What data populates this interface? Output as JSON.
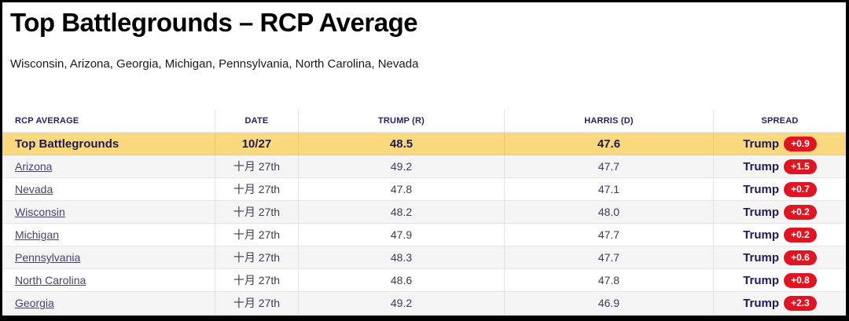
{
  "page": {
    "title": "Top Battlegrounds – RCP Average",
    "subtitle": "Wisconsin, Arizona, Georgia, Michigan, Pennsylvania, North Carolina, Nevada"
  },
  "table": {
    "columns": [
      "RCP AVERAGE",
      "DATE",
      "TRUMP (R)",
      "HARRIS (D)",
      "SPREAD"
    ],
    "summary_row": {
      "label": "Top Battlegrounds",
      "date": "10/27",
      "trump": "48.5",
      "harris": "47.6",
      "spread_winner": "Trump",
      "spread_margin": "+0.9"
    },
    "rows": [
      {
        "state": "Arizona",
        "date": "十月 27th",
        "trump": "49.2",
        "harris": "47.7",
        "spread_winner": "Trump",
        "spread_margin": "+1.5"
      },
      {
        "state": "Nevada",
        "date": "十月 27th",
        "trump": "47.8",
        "harris": "47.1",
        "spread_winner": "Trump",
        "spread_margin": "+0.7"
      },
      {
        "state": "Wisconsin",
        "date": "十月 27th",
        "trump": "48.2",
        "harris": "48.0",
        "spread_winner": "Trump",
        "spread_margin": "+0.2"
      },
      {
        "state": "Michigan",
        "date": "十月 27th",
        "trump": "47.9",
        "harris": "47.7",
        "spread_winner": "Trump",
        "spread_margin": "+0.2"
      },
      {
        "state": "Pennsylvania",
        "date": "十月 27th",
        "trump": "48.3",
        "harris": "47.7",
        "spread_winner": "Trump",
        "spread_margin": "+0.6"
      },
      {
        "state": "North Carolina",
        "date": "十月 27th",
        "trump": "48.6",
        "harris": "47.8",
        "spread_winner": "Trump",
        "spread_margin": "+0.8"
      },
      {
        "state": "Georgia",
        "date": "十月 27th",
        "trump": "49.2",
        "harris": "46.9",
        "spread_winner": "Trump",
        "spread_margin": "+2.3"
      }
    ]
  },
  "colors": {
    "highlight_row_bg": "#fad87e",
    "stripe_row_bg": "#f5f5f5",
    "badge_bg": "#e11522",
    "badge_text": "#ffffff",
    "navy_text": "#1e1b57",
    "header_text": "#262262",
    "link_text": "#44436e",
    "frame_border": "#000000"
  }
}
